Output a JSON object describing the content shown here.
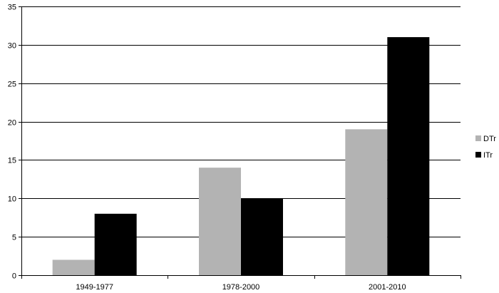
{
  "chart_data": {
    "type": "bar",
    "categories": [
      "1949-1977",
      "1978-2000",
      "2001-2010"
    ],
    "series": [
      {
        "name": "DTr",
        "values": [
          2,
          14,
          19
        ],
        "color": "#b3b3b3"
      },
      {
        "name": "ITr",
        "values": [
          8,
          10,
          31
        ],
        "color": "#000000"
      }
    ],
    "title": "",
    "xlabel": "",
    "ylabel": "",
    "ylim": [
      0,
      35
    ],
    "yticks": [
      0,
      5,
      10,
      15,
      20,
      25,
      30,
      35
    ],
    "grid": true,
    "legend_position": "right"
  }
}
